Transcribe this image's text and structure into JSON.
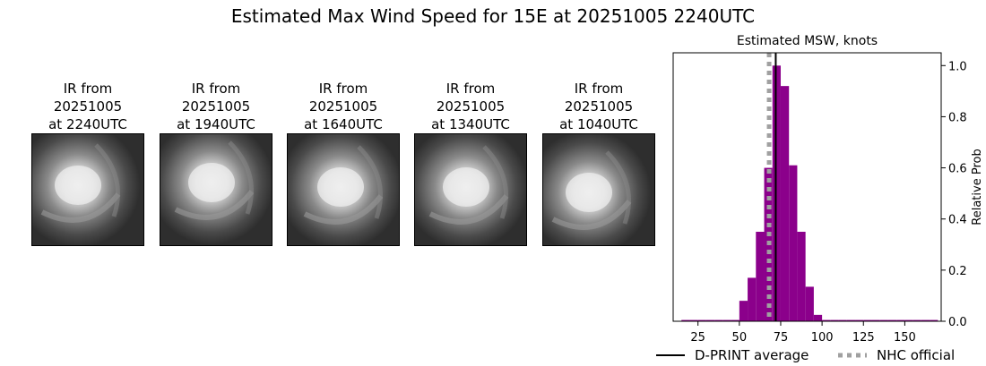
{
  "figure": {
    "title": "Estimated Max Wind Speed for 15E at 20251005 2240UTC"
  },
  "ir_panels": [
    {
      "line1": "IR from",
      "line2": "20251005",
      "line3": "at 2240UTC"
    },
    {
      "line1": "IR from",
      "line2": "20251005",
      "line3": "at 1940UTC"
    },
    {
      "line1": "IR from",
      "line2": "20251005",
      "line3": "at 1640UTC"
    },
    {
      "line1": "IR from",
      "line2": "20251005",
      "line3": "at 1340UTC"
    },
    {
      "line1": "IR from",
      "line2": "20251005",
      "line3": "at 1040UTC"
    }
  ],
  "chart_data": {
    "type": "bar",
    "title": "Estimated MSW, knots",
    "xlabel": "",
    "ylabel": "Relative Prob",
    "xlim": [
      10,
      172
    ],
    "ylim": [
      0,
      1.05
    ],
    "xticks": [
      25,
      50,
      75,
      100,
      125,
      150
    ],
    "yticks": [
      0.0,
      0.2,
      0.4,
      0.6,
      0.8,
      1.0
    ],
    "ytick_labels": [
      "0.0",
      "0.2",
      "0.4",
      "0.6",
      "0.8",
      "1.0"
    ],
    "y_axis_side": "right",
    "bar_width": 5,
    "bar_color": "#8b008b",
    "bins": [
      15,
      20,
      25,
      30,
      35,
      40,
      45,
      50,
      55,
      60,
      65,
      70,
      75,
      80,
      85,
      90,
      95,
      100,
      105,
      110,
      115,
      120,
      125,
      130,
      135,
      140,
      145,
      150,
      155,
      160,
      165
    ],
    "values": [
      0.005,
      0.005,
      0.005,
      0.005,
      0.005,
      0.005,
      0.005,
      0.08,
      0.17,
      0.35,
      0.6,
      1.0,
      0.92,
      0.61,
      0.35,
      0.135,
      0.025,
      0.005,
      0.005,
      0.005,
      0.005,
      0.005,
      0.005,
      0.005,
      0.005,
      0.005,
      0.005,
      0.005,
      0.005,
      0.005,
      0.005
    ],
    "series": [
      {
        "name": "D-PRINT average",
        "x": 72,
        "style": "solid",
        "color": "#000000"
      },
      {
        "name": "NHC official",
        "x": 68,
        "style": "dotted",
        "color": "#a0a0a0"
      }
    ],
    "legend_position": "bottom"
  }
}
